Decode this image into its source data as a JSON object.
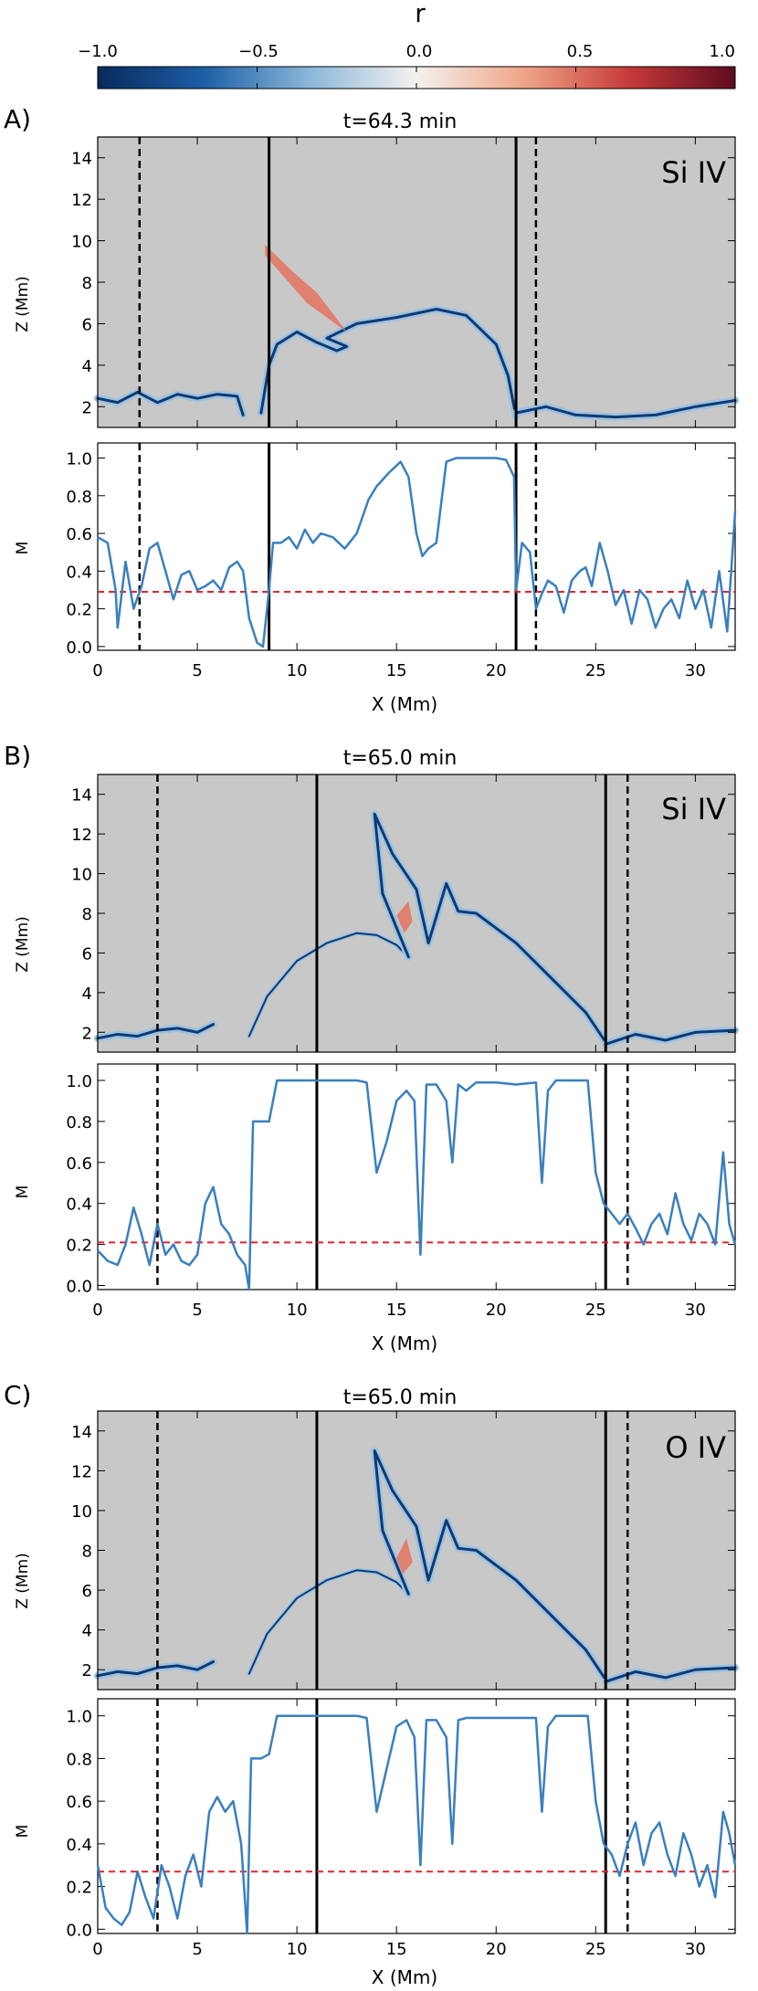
{
  "colorbar": {
    "title": "r",
    "ticks": [
      -1.0,
      -0.5,
      0.0,
      0.5,
      1.0
    ],
    "tick_labels": [
      "−1.0",
      "−0.5",
      "0.0",
      "0.5",
      "1.0"
    ],
    "colors": [
      "#082a5c",
      "#1c5fa6",
      "#8cb8da",
      "#f4f1ef",
      "#f0a688",
      "#c63a3a",
      "#5e0b1f"
    ]
  },
  "panels": [
    {
      "letter": "A)",
      "time_label": "t=64.3 min",
      "line_label": "Si IV"
    },
    {
      "letter": "B)",
      "time_label": "t=65.0 min",
      "line_label": "Si IV"
    },
    {
      "letter": "C)",
      "time_label": "t=65.0 min",
      "line_label": "O IV"
    }
  ],
  "axis_labels": {
    "z": "Z (Mm)",
    "m": "M",
    "x": "X (Mm)"
  },
  "chart_data": [
    {
      "panel": "A",
      "type": "line",
      "title": "t=64.3 min",
      "ion": "Si IV",
      "xlabel": "X (Mm)",
      "ylabel_top": "Z (Mm)",
      "ylabel_bottom": "M",
      "xlim": [
        0,
        32
      ],
      "xticks": [
        0,
        5,
        10,
        15,
        20,
        25,
        30
      ],
      "zlim": [
        1,
        15
      ],
      "zticks": [
        2,
        4,
        6,
        8,
        10,
        12,
        14
      ],
      "mlim": [
        -0.02,
        1.08
      ],
      "mticks": [
        0.0,
        0.2,
        0.4,
        0.6,
        0.8,
        1.0
      ],
      "solid_lines_x": [
        8.6,
        21.0
      ],
      "dashed_lines_x": [
        2.1,
        22.0
      ],
      "threshold_m": 0.29,
      "m_series": {
        "x": [
          0,
          0.5,
          0.9,
          1.0,
          1.4,
          1.8,
          2.2,
          2.6,
          3.0,
          3.4,
          3.8,
          4.2,
          4.6,
          5.0,
          5.4,
          5.8,
          6.2,
          6.6,
          7.0,
          7.3,
          7.6,
          8.0,
          8.3,
          8.6,
          8.8,
          9.2,
          9.6,
          10.0,
          10.4,
          10.8,
          11.2,
          11.8,
          12.4,
          13.0,
          13.6,
          14.0,
          14.6,
          15.2,
          15.6,
          16.0,
          16.3,
          16.6,
          17.0,
          17.5,
          18.0,
          19.0,
          20.0,
          20.5,
          20.9,
          21.0,
          21.3,
          21.7,
          22.0,
          22.3,
          22.6,
          23.0,
          23.4,
          23.8,
          24.2,
          24.5,
          24.8,
          25.2,
          25.6,
          26.0,
          26.4,
          26.8,
          27.2,
          27.6,
          28.0,
          28.4,
          28.8,
          29.2,
          29.6,
          30.0,
          30.4,
          30.8,
          31.2,
          31.6,
          32.0
        ],
        "y": [
          0.58,
          0.55,
          0.3,
          0.1,
          0.45,
          0.2,
          0.32,
          0.52,
          0.55,
          0.4,
          0.25,
          0.38,
          0.4,
          0.3,
          0.32,
          0.35,
          0.3,
          0.42,
          0.45,
          0.4,
          0.15,
          0.02,
          0.0,
          0.3,
          0.55,
          0.55,
          0.58,
          0.52,
          0.62,
          0.55,
          0.6,
          0.58,
          0.52,
          0.6,
          0.78,
          0.85,
          0.92,
          0.98,
          0.9,
          0.6,
          0.48,
          0.52,
          0.55,
          0.98,
          1.0,
          1.0,
          1.0,
          0.99,
          0.9,
          0.3,
          0.55,
          0.5,
          0.2,
          0.28,
          0.35,
          0.32,
          0.18,
          0.35,
          0.4,
          0.42,
          0.32,
          0.55,
          0.4,
          0.22,
          0.3,
          0.12,
          0.3,
          0.25,
          0.1,
          0.2,
          0.25,
          0.15,
          0.35,
          0.2,
          0.3,
          0.1,
          0.4,
          0.08,
          0.72
        ]
      }
    },
    {
      "panel": "B",
      "type": "line",
      "title": "t=65.0 min",
      "ion": "Si IV",
      "xlabel": "X (Mm)",
      "ylabel_top": "Z (Mm)",
      "ylabel_bottom": "M",
      "xlim": [
        0,
        32
      ],
      "xticks": [
        0,
        5,
        10,
        15,
        20,
        25,
        30
      ],
      "zlim": [
        1,
        15
      ],
      "zticks": [
        2,
        4,
        6,
        8,
        10,
        12,
        14
      ],
      "mlim": [
        -0.02,
        1.08
      ],
      "mticks": [
        0.0,
        0.2,
        0.4,
        0.6,
        0.8,
        1.0
      ],
      "solid_lines_x": [
        11.0,
        25.5
      ],
      "dashed_lines_x": [
        3.0,
        26.6
      ],
      "threshold_m": 0.21,
      "m_series": {
        "x": [
          0,
          0.5,
          1.0,
          1.4,
          1.8,
          2.2,
          2.6,
          3.0,
          3.4,
          3.8,
          4.2,
          4.6,
          5.0,
          5.4,
          5.8,
          6.2,
          6.6,
          7.0,
          7.4,
          7.6,
          7.8,
          8.2,
          8.6,
          9.0,
          9.6,
          10.4,
          11.0,
          12.0,
          13.0,
          13.5,
          14.0,
          14.5,
          15.0,
          15.5,
          15.9,
          16.2,
          16.5,
          17.0,
          17.5,
          17.8,
          18.1,
          18.5,
          19.0,
          20.0,
          21.0,
          22.0,
          22.3,
          22.6,
          23.0,
          23.5,
          24.0,
          24.6,
          25.0,
          25.4,
          25.8,
          26.2,
          26.6,
          27.0,
          27.4,
          27.8,
          28.2,
          28.6,
          29.0,
          29.4,
          29.8,
          30.2,
          30.6,
          31.0,
          31.4,
          31.7,
          32.0
        ],
        "y": [
          0.17,
          0.12,
          0.1,
          0.2,
          0.38,
          0.25,
          0.1,
          0.3,
          0.15,
          0.2,
          0.12,
          0.1,
          0.15,
          0.4,
          0.48,
          0.3,
          0.25,
          0.15,
          0.1,
          -0.02,
          0.8,
          0.8,
          0.8,
          1.0,
          1.0,
          1.0,
          1.0,
          1.0,
          1.0,
          0.99,
          0.55,
          0.7,
          0.9,
          0.95,
          0.9,
          0.15,
          0.98,
          0.98,
          0.9,
          0.6,
          0.98,
          0.95,
          0.99,
          0.99,
          0.98,
          0.99,
          0.5,
          0.95,
          1.0,
          1.0,
          1.0,
          1.0,
          0.55,
          0.4,
          0.35,
          0.3,
          0.35,
          0.28,
          0.2,
          0.3,
          0.35,
          0.25,
          0.45,
          0.3,
          0.22,
          0.35,
          0.3,
          0.2,
          0.65,
          0.3,
          0.2
        ]
      }
    },
    {
      "panel": "C",
      "type": "line",
      "title": "t=65.0 min",
      "ion": "O IV",
      "xlabel": "X (Mm)",
      "ylabel_top": "Z (Mm)",
      "ylabel_bottom": "M",
      "xlim": [
        0,
        32
      ],
      "xticks": [
        0,
        5,
        10,
        15,
        20,
        25,
        30
      ],
      "zlim": [
        1,
        15
      ],
      "zticks": [
        2,
        4,
        6,
        8,
        10,
        12,
        14
      ],
      "mlim": [
        -0.02,
        1.08
      ],
      "mticks": [
        0.0,
        0.2,
        0.4,
        0.6,
        0.8,
        1.0
      ],
      "solid_lines_x": [
        11.0,
        25.5
      ],
      "dashed_lines_x": [
        3.0,
        26.6
      ],
      "threshold_m": 0.27,
      "m_series": {
        "x": [
          0,
          0.4,
          0.8,
          1.2,
          1.6,
          2.0,
          2.4,
          2.8,
          3.2,
          3.6,
          4.0,
          4.4,
          4.8,
          5.2,
          5.6,
          6.0,
          6.4,
          6.8,
          7.2,
          7.5,
          7.7,
          8.2,
          8.6,
          9.0,
          9.6,
          10.4,
          11.0,
          12.0,
          13.0,
          13.5,
          14.0,
          14.5,
          15.0,
          15.5,
          15.9,
          16.2,
          16.5,
          17.0,
          17.5,
          17.8,
          18.1,
          18.5,
          19.0,
          20.0,
          21.0,
          22.0,
          22.3,
          22.6,
          23.0,
          23.5,
          24.0,
          24.6,
          25.0,
          25.4,
          25.8,
          26.2,
          26.6,
          27.0,
          27.4,
          27.8,
          28.2,
          28.6,
          29.0,
          29.4,
          29.8,
          30.2,
          30.6,
          31.0,
          31.4,
          31.7,
          32.0
        ],
        "y": [
          0.3,
          0.1,
          0.05,
          0.02,
          0.08,
          0.27,
          0.15,
          0.05,
          0.3,
          0.2,
          0.05,
          0.25,
          0.35,
          0.2,
          0.55,
          0.62,
          0.55,
          0.6,
          0.4,
          -0.02,
          0.8,
          0.8,
          0.82,
          1.0,
          1.0,
          1.0,
          1.0,
          1.0,
          1.0,
          0.99,
          0.55,
          0.75,
          0.95,
          0.98,
          0.9,
          0.3,
          0.98,
          0.98,
          0.9,
          0.4,
          0.98,
          0.99,
          0.99,
          0.99,
          0.99,
          0.99,
          0.55,
          0.95,
          1.0,
          1.0,
          1.0,
          1.0,
          0.6,
          0.4,
          0.35,
          0.25,
          0.4,
          0.5,
          0.3,
          0.45,
          0.5,
          0.35,
          0.25,
          0.45,
          0.35,
          0.2,
          0.3,
          0.15,
          0.55,
          0.45,
          0.3
        ]
      }
    }
  ]
}
